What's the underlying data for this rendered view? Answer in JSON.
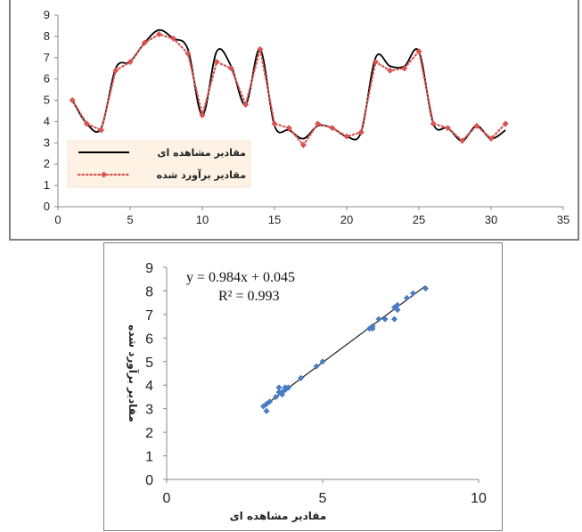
{
  "chart_data": [
    {
      "type": "line",
      "xlim": [
        0,
        35
      ],
      "ylim": [
        0,
        9
      ],
      "x_ticks": [
        "0",
        "5",
        "10",
        "15",
        "20",
        "25",
        "30",
        "35"
      ],
      "y_ticks": [
        "0",
        "1",
        "2",
        "3",
        "4",
        "5",
        "6",
        "7",
        "8",
        "9"
      ],
      "legend_position": "bottom-left",
      "x": [
        1,
        2,
        3,
        4,
        5,
        6,
        7,
        8,
        9,
        10,
        11,
        12,
        13,
        14,
        15,
        16,
        17,
        18,
        19,
        20,
        21,
        22,
        23,
        24,
        25,
        26,
        27,
        28,
        29,
        30,
        31
      ],
      "series": [
        {
          "name": "مقادیر مشاهده ای",
          "color": "#000000",
          "style": "solid",
          "values": [
            5.0,
            3.9,
            3.7,
            6.5,
            6.8,
            7.7,
            8.3,
            7.9,
            7.4,
            4.3,
            7.3,
            6.6,
            4.8,
            7.4,
            3.8,
            3.6,
            3.2,
            3.8,
            3.7,
            3.3,
            3.5,
            7.0,
            6.6,
            6.6,
            7.3,
            3.9,
            3.7,
            3.1,
            3.8,
            3.2,
            3.6
          ]
        },
        {
          "name": "مقادیر برآورد شده",
          "color": "#d9534f",
          "style": "dotted-diamond",
          "values": [
            5.0,
            3.9,
            3.6,
            6.4,
            6.8,
            7.7,
            8.1,
            7.9,
            7.2,
            4.3,
            6.8,
            6.5,
            4.8,
            7.4,
            3.9,
            3.7,
            2.9,
            3.9,
            3.7,
            3.3,
            3.5,
            6.8,
            6.4,
            6.5,
            7.3,
            3.9,
            3.7,
            3.1,
            3.8,
            3.2,
            3.9
          ]
        }
      ]
    },
    {
      "type": "scatter",
      "xlim": [
        0,
        10
      ],
      "ylim": [
        0,
        9
      ],
      "x_ticks": [
        "0",
        "5",
        "10"
      ],
      "y_ticks": [
        "0",
        "1",
        "2",
        "3",
        "4",
        "5",
        "6",
        "7",
        "8",
        "9"
      ],
      "xlabel": "مقادیر مشاهده ای",
      "ylabel": "مقادیر برآورد شده",
      "equation": "y = 0.984x + 0.045",
      "r_squared": "R² = 0.993",
      "trendline": {
        "slope": 0.984,
        "intercept": 0.045,
        "x_range": [
          3.2,
          8.3
        ],
        "color": "#2f2f2f"
      },
      "point_color": "#4a7cc3",
      "points": [
        [
          5.0,
          5.0
        ],
        [
          3.9,
          3.9
        ],
        [
          3.7,
          3.6
        ],
        [
          6.5,
          6.4
        ],
        [
          6.8,
          6.8
        ],
        [
          7.7,
          7.7
        ],
        [
          8.3,
          8.1
        ],
        [
          7.9,
          7.9
        ],
        [
          7.4,
          7.2
        ],
        [
          4.3,
          4.3
        ],
        [
          7.3,
          6.8
        ],
        [
          6.6,
          6.5
        ],
        [
          4.8,
          4.8
        ],
        [
          7.4,
          7.4
        ],
        [
          3.8,
          3.9
        ],
        [
          3.6,
          3.7
        ],
        [
          3.2,
          2.9
        ],
        [
          3.8,
          3.9
        ],
        [
          3.7,
          3.7
        ],
        [
          3.3,
          3.3
        ],
        [
          3.5,
          3.5
        ],
        [
          7.0,
          6.8
        ],
        [
          6.6,
          6.4
        ],
        [
          6.6,
          6.5
        ],
        [
          7.3,
          7.3
        ],
        [
          3.9,
          3.9
        ],
        [
          3.7,
          3.7
        ],
        [
          3.1,
          3.1
        ],
        [
          3.8,
          3.8
        ],
        [
          3.2,
          3.2
        ],
        [
          3.6,
          3.9
        ]
      ]
    }
  ]
}
